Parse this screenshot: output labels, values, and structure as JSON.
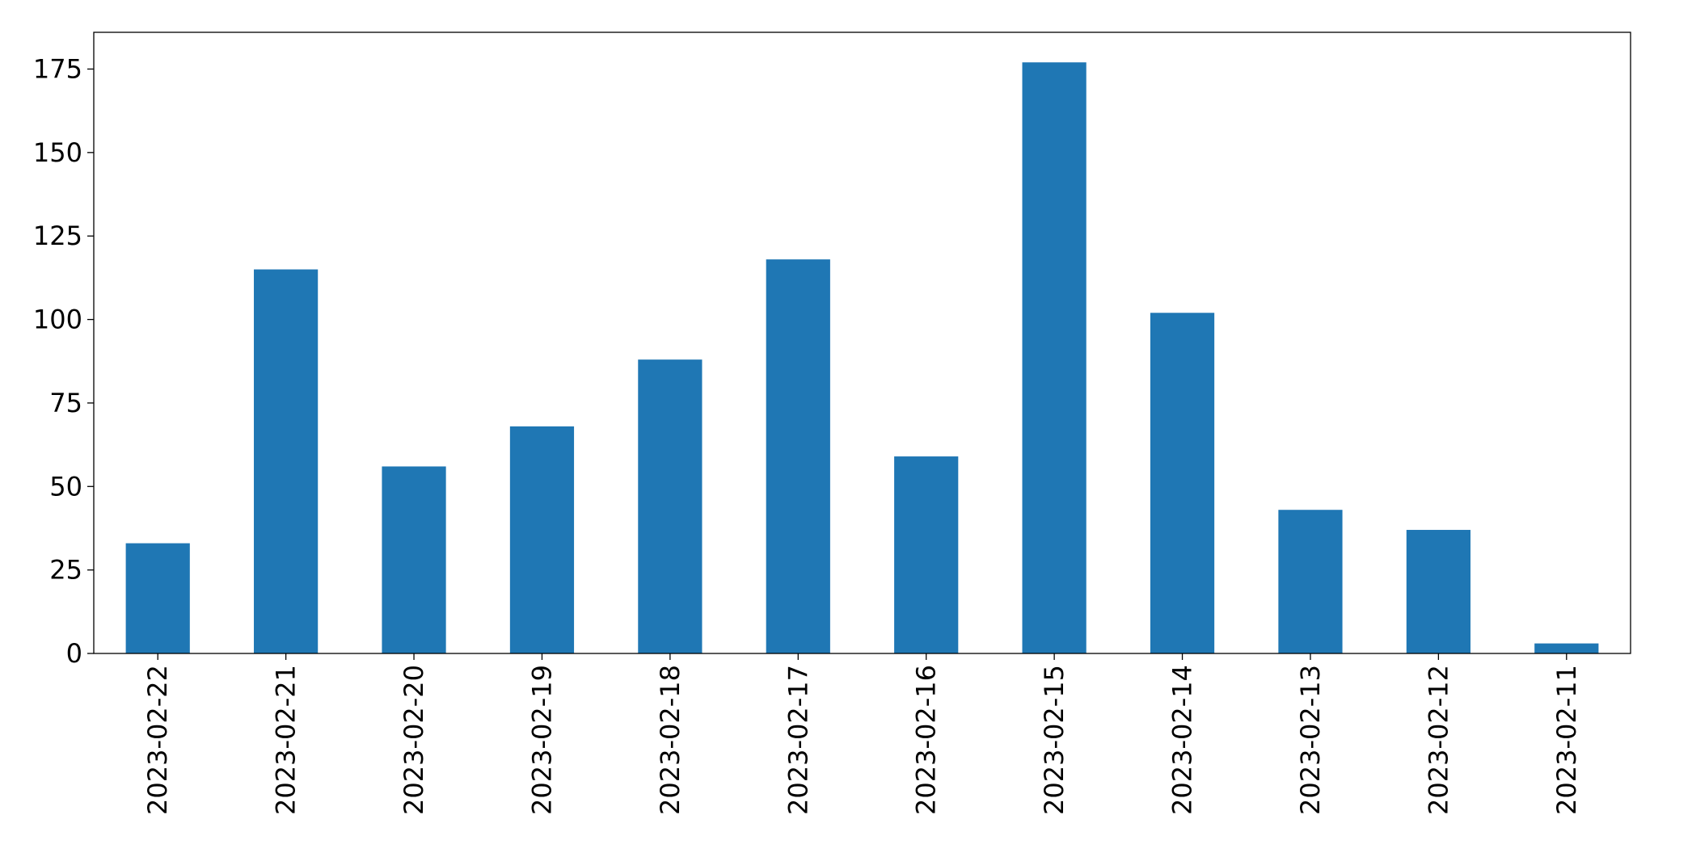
{
  "chart_data": {
    "type": "bar",
    "categories": [
      "2023-02-22",
      "2023-02-21",
      "2023-02-20",
      "2023-02-19",
      "2023-02-18",
      "2023-02-17",
      "2023-02-16",
      "2023-02-15",
      "2023-02-14",
      "2023-02-13",
      "2023-02-12",
      "2023-02-11"
    ],
    "values": [
      33,
      115,
      56,
      68,
      88,
      118,
      59,
      177,
      102,
      43,
      37,
      3
    ],
    "color": "#1f77b4",
    "ylim": [
      0,
      186
    ],
    "yticks": [
      0,
      25,
      50,
      75,
      100,
      125,
      150,
      175
    ],
    "grid": false
  }
}
